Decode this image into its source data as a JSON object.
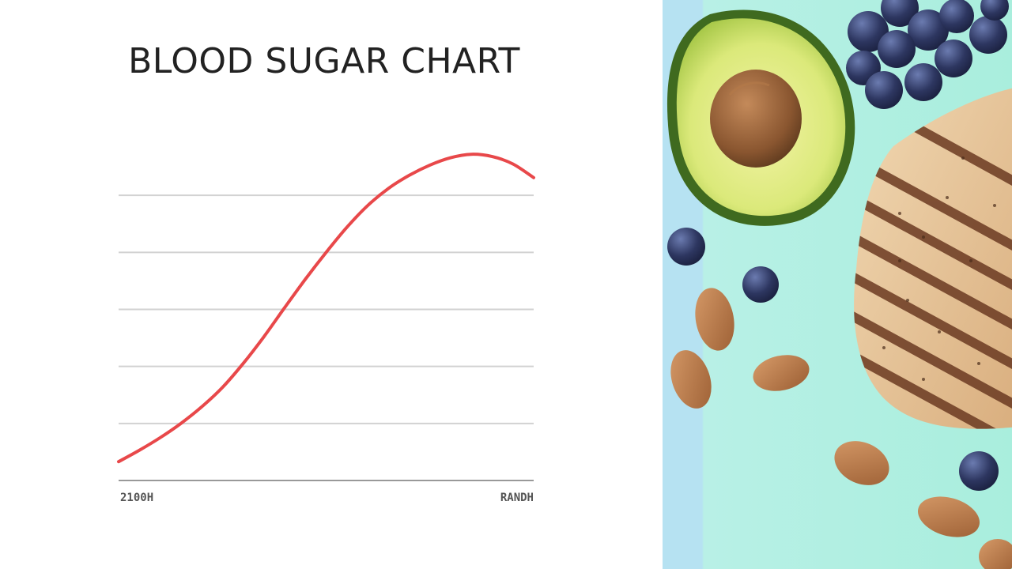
{
  "chart_data": {
    "type": "line",
    "title": "BLOOD SUGAR CHART",
    "x_tick_labels": [
      "2100H",
      "RANDH"
    ],
    "x": [
      0,
      5,
      10,
      15,
      20,
      25,
      30,
      35,
      40,
      45,
      50,
      55,
      60,
      65,
      70,
      75,
      80,
      85,
      90,
      95,
      100
    ],
    "series": [
      {
        "color": "#e8484a",
        "values": [
          3.3,
          5.3,
          7.5,
          10.0,
          12.9,
          16.3,
          20.5,
          25.2,
          30.3,
          35.3,
          40.0,
          44.4,
          48.2,
          51.2,
          53.5,
          55.3,
          56.6,
          57.2,
          56.8,
          55.5,
          53.1
        ]
      }
    ],
    "ylim": [
      0,
      60
    ],
    "y_gridlines": [
      10,
      20,
      30,
      40,
      50
    ],
    "grid": true,
    "legend": "none",
    "colors": {
      "gridline": "#d2d2d2",
      "axis": "#999999",
      "line": "#e8484a"
    }
  },
  "side_image": {
    "description_icons": [
      "avocado-icon",
      "blueberry-icon",
      "almond-icon",
      "grilled-chicken-icon"
    ],
    "colors": {
      "background": "#a9eedd",
      "strip": "#b6e2f2"
    }
  }
}
